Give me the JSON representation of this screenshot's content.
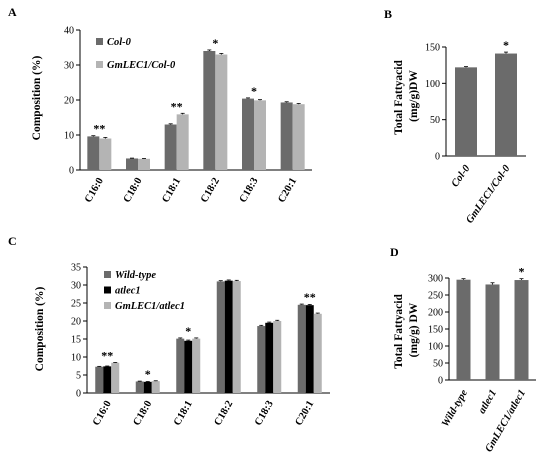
{
  "colors": {
    "dark": "#6b6b6b",
    "light": "#b4b4b4",
    "black": "#000000",
    "axis": "#000000"
  },
  "chart_data": [
    {
      "panel": "A",
      "type": "bar",
      "ylabel": "Composition (%)",
      "ylim": [
        0,
        40
      ],
      "yticks": [
        0,
        10,
        20,
        30,
        40
      ],
      "categories": [
        "C16:0",
        "C18:0",
        "C18:1",
        "C18:2",
        "C18:3",
        "C20:1"
      ],
      "series": [
        {
          "name": "Col-0",
          "color": "dark",
          "values": [
            9.6,
            3.3,
            13.0,
            34.0,
            20.4,
            19.3
          ],
          "errors": [
            0.2,
            0.1,
            0.2,
            0.3,
            0.2,
            0.2
          ]
        },
        {
          "name": "GmLEC1/Col-0",
          "color": "light",
          "values": [
            9.0,
            3.2,
            15.9,
            33.0,
            19.9,
            18.8
          ],
          "errors": [
            0.3,
            0.1,
            0.3,
            0.3,
            0.2,
            0.2
          ]
        }
      ],
      "significance": [
        "**",
        "",
        "**",
        "*",
        "*",
        ""
      ],
      "legend_position": "top-left",
      "grid": false
    },
    {
      "panel": "B",
      "type": "bar",
      "ylabel": "Total Fattyacid (mg/g)DW",
      "ylim": [
        0,
        150
      ],
      "yticks": [
        0,
        50,
        100,
        150
      ],
      "categories": [
        "Col-0",
        "GmLEC1/Col-0"
      ],
      "values": [
        122,
        141
      ],
      "errors": [
        1,
        2
      ],
      "color": "dark",
      "significance": [
        "",
        "*"
      ],
      "grid": false
    },
    {
      "panel": "C",
      "type": "bar",
      "ylabel": "Composition (%)",
      "ylim": [
        0,
        35
      ],
      "yticks": [
        0,
        5,
        10,
        15,
        20,
        25,
        30,
        35
      ],
      "categories": [
        "C16:0",
        "C18:0",
        "C18:1",
        "C18:2",
        "C18:3",
        "C20:1"
      ],
      "series": [
        {
          "name": "Wild-type",
          "color": "dark",
          "values": [
            7.3,
            3.2,
            15.1,
            31.0,
            18.6,
            24.5
          ],
          "errors": [
            0.1,
            0.1,
            0.2,
            0.2,
            0.2,
            0.2
          ]
        },
        {
          "name": "atlec1",
          "color": "black",
          "values": [
            7.4,
            3.1,
            14.5,
            31.2,
            19.5,
            24.4
          ],
          "errors": [
            0.1,
            0.1,
            0.2,
            0.2,
            0.2,
            0.2
          ]
        },
        {
          "name": "GmLEC1/atlec1",
          "color": "light",
          "values": [
            8.4,
            3.3,
            15.1,
            31.1,
            20.0,
            22.0
          ],
          "errors": [
            0.1,
            0.1,
            0.2,
            0.2,
            0.2,
            0.2
          ]
        }
      ],
      "significance": [
        "**",
        "*",
        "*",
        "",
        "",
        "**"
      ],
      "legend_position": "top-left",
      "grid": false
    },
    {
      "panel": "D",
      "type": "bar",
      "ylabel": "Total Fattyacid (mg/g) DW",
      "ylim": [
        0,
        300
      ],
      "yticks": [
        0,
        50,
        100,
        150,
        200,
        250,
        300
      ],
      "categories": [
        "Wild-type",
        "atlec1",
        "GmLEC1/atlec1"
      ],
      "values": [
        295,
        281,
        294
      ],
      "errors": [
        3,
        5,
        4
      ],
      "color": "dark",
      "significance": [
        "",
        "",
        "*"
      ],
      "grid": false
    }
  ]
}
